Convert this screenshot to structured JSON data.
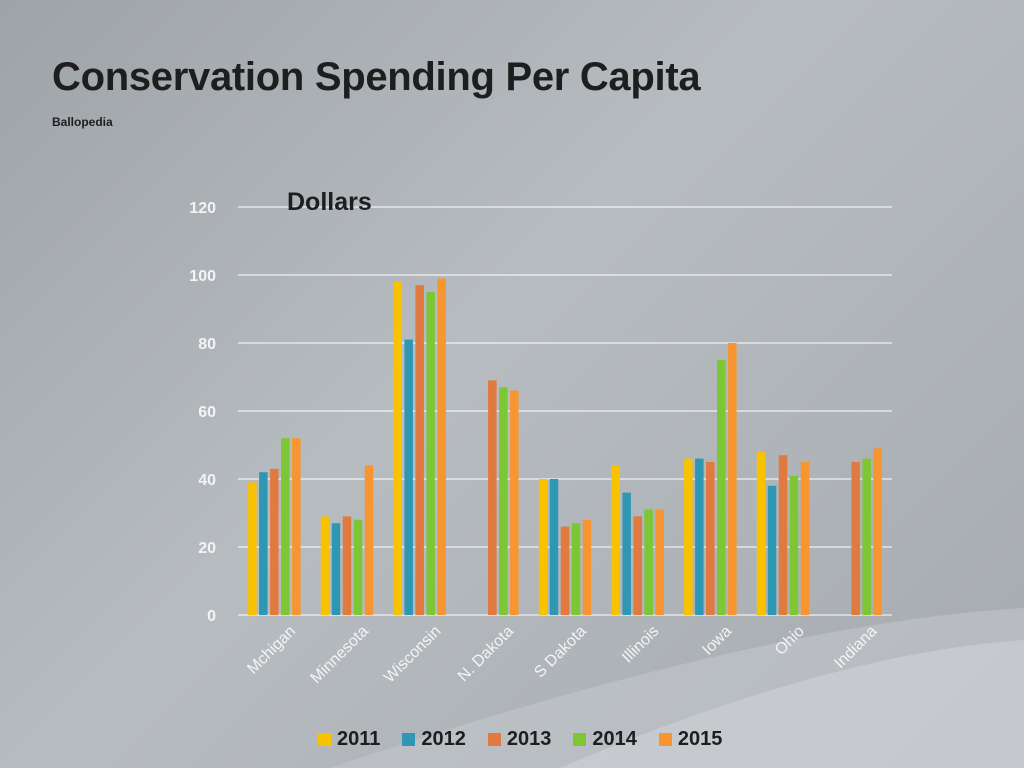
{
  "slide": {
    "title": "Conservation Spending Per Capita",
    "subtitle": "Ballopedia"
  },
  "colors": {
    "2011": "#f8c200",
    "2012": "#2f97b4",
    "2013": "#e07a3f",
    "2014": "#7dc634",
    "2015": "#f79631",
    "gridline": "#ffffff",
    "text": "#1e1e1e"
  },
  "chart_data": {
    "type": "bar",
    "title": "Dollars",
    "xlabel": "",
    "ylabel": "Dollars",
    "ylim": [
      0,
      120
    ],
    "yticks": [
      0,
      20,
      40,
      60,
      80,
      100,
      120
    ],
    "grid": true,
    "legend_position": "bottom",
    "categories": [
      "Mchigan",
      "Minnesota",
      "Wisconsin",
      "N. Dakota",
      "S Dakota",
      "Illinois",
      "Iowa",
      "Ohio",
      "Indiana"
    ],
    "series": [
      {
        "name": "2011",
        "values": [
          39,
          29,
          98,
          null,
          40,
          44,
          46,
          48,
          null
        ]
      },
      {
        "name": "2012",
        "values": [
          42,
          27,
          81,
          null,
          40,
          36,
          46,
          38,
          null
        ]
      },
      {
        "name": "2013",
        "values": [
          43,
          29,
          97,
          69,
          26,
          29,
          45,
          47,
          45
        ]
      },
      {
        "name": "2014",
        "values": [
          52,
          28,
          95,
          67,
          27,
          31,
          75,
          41,
          46
        ]
      },
      {
        "name": "2015",
        "values": [
          52,
          44,
          99,
          66,
          28,
          31,
          80,
          45,
          49
        ]
      }
    ]
  }
}
